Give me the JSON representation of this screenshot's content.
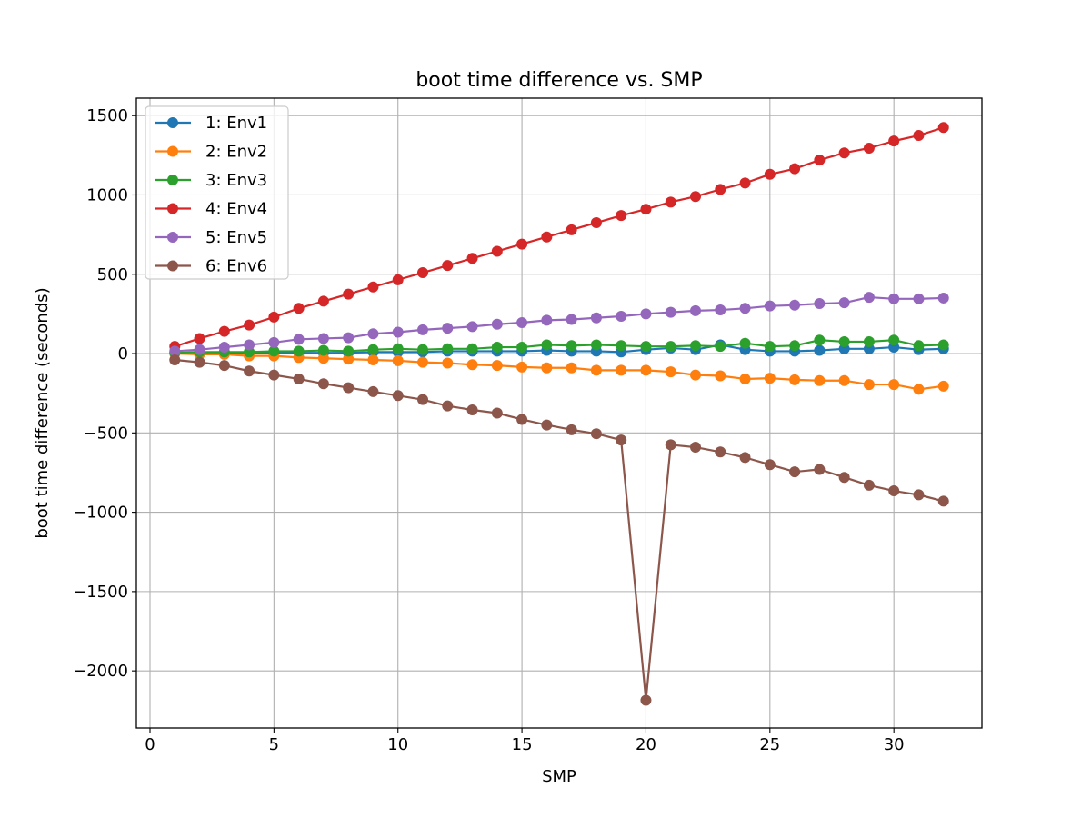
{
  "chart_data": {
    "type": "line",
    "title": "boot time difference vs. SMP",
    "xlabel": "SMP",
    "ylabel": "boot time difference (seconds)",
    "xlim": [
      -0.55,
      33.55
    ],
    "ylim": [
      -2360,
      1610
    ],
    "xticks": [
      0,
      5,
      10,
      15,
      20,
      25,
      30
    ],
    "yticks": [
      1500,
      1000,
      500,
      0,
      -500,
      -1000,
      -1500,
      -2000
    ],
    "xtick_labels": [
      "0",
      "5",
      "10",
      "15",
      "20",
      "25",
      "30"
    ],
    "ytick_labels": [
      "1500",
      "1000",
      "500",
      "0",
      "−500",
      "−1000",
      "−1500",
      "−2000"
    ],
    "grid": true,
    "legend_position": "upper-left",
    "x": [
      1,
      2,
      3,
      4,
      5,
      6,
      7,
      8,
      9,
      10,
      11,
      12,
      13,
      14,
      15,
      16,
      17,
      18,
      19,
      20,
      21,
      22,
      23,
      24,
      25,
      26,
      27,
      28,
      29,
      30,
      31,
      32
    ],
    "series": [
      {
        "name": "1: Env1",
        "color": "#1f77b4",
        "values": [
          5,
          5,
          5,
          5,
          5,
          5,
          5,
          5,
          10,
          10,
          10,
          15,
          15,
          15,
          15,
          20,
          15,
          15,
          10,
          25,
          35,
          25,
          55,
          25,
          15,
          15,
          20,
          30,
          30,
          40,
          25,
          30
        ]
      },
      {
        "name": "2: Env2",
        "color": "#ff7f0e",
        "values": [
          0,
          -5,
          -5,
          -15,
          -15,
          -25,
          -30,
          -35,
          -40,
          -45,
          -55,
          -60,
          -70,
          -75,
          -85,
          -90,
          -90,
          -105,
          -105,
          -105,
          -115,
          -135,
          -140,
          -160,
          -155,
          -165,
          -170,
          -170,
          -195,
          -195,
          -225,
          -205
        ]
      },
      {
        "name": "3: Env3",
        "color": "#2ca02c",
        "values": [
          5,
          10,
          10,
          10,
          15,
          15,
          20,
          15,
          25,
          30,
          25,
          30,
          30,
          40,
          40,
          55,
          50,
          55,
          50,
          45,
          45,
          50,
          45,
          65,
          45,
          50,
          85,
          75,
          75,
          85,
          50,
          55
        ]
      },
      {
        "name": "4: Env4",
        "color": "#d62728",
        "values": [
          45,
          95,
          140,
          180,
          230,
          285,
          330,
          375,
          420,
          465,
          510,
          555,
          600,
          645,
          690,
          735,
          780,
          825,
          870,
          910,
          955,
          990,
          1035,
          1075,
          1130,
          1165,
          1220,
          1265,
          1295,
          1340,
          1375,
          1425
        ]
      },
      {
        "name": "5: Env5",
        "color": "#9467bd",
        "values": [
          15,
          25,
          40,
          55,
          70,
          90,
          95,
          100,
          125,
          135,
          150,
          160,
          170,
          185,
          195,
          210,
          215,
          225,
          235,
          250,
          260,
          270,
          275,
          285,
          300,
          305,
          315,
          320,
          355,
          345,
          345,
          350
        ]
      },
      {
        "name": "6: Env6",
        "color": "#8c564b",
        "values": [
          -40,
          -55,
          -75,
          -110,
          -135,
          -160,
          -190,
          -215,
          -240,
          -265,
          -290,
          -330,
          -355,
          -375,
          -415,
          -450,
          -480,
          -505,
          -545,
          -2185,
          -575,
          -590,
          -620,
          -655,
          -700,
          -745,
          -730,
          -780,
          -830,
          -865,
          -890,
          -930
        ]
      }
    ]
  }
}
